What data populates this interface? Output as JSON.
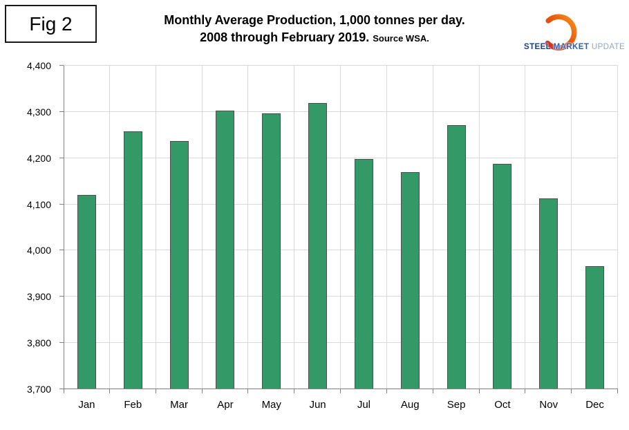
{
  "figure_label": "Fig 2",
  "title": {
    "line1": "Monthly Average Production, 1,000 tonnes per day.",
    "line2": "2008 through February 2019.",
    "source": "Source WSA."
  },
  "logo": {
    "part1": "STEEL",
    "part2": "MARKET",
    "part3": "UPDATE",
    "ring_color_start": "#d23a2b",
    "ring_color_end": "#f7941d"
  },
  "chart_data": {
    "type": "bar",
    "title": "Monthly Average Production, 1,000 tonnes per day. 2008 through February 2019. Source WSA.",
    "categories": [
      "Jan",
      "Feb",
      "Mar",
      "Apr",
      "May",
      "Jun",
      "Jul",
      "Aug",
      "Sep",
      "Oct",
      "Nov",
      "Dec"
    ],
    "values": [
      4120,
      4258,
      4237,
      4303,
      4297,
      4320,
      4198,
      4169,
      4272,
      4188,
      4113,
      3966
    ],
    "xlabel": "",
    "ylabel": "",
    "ylim": [
      3700,
      4400
    ],
    "ytick_step": 100,
    "yticks": [
      {
        "value": 3700,
        "label": "3,700"
      },
      {
        "value": 3800,
        "label": "3,800"
      },
      {
        "value": 3900,
        "label": "3,900"
      },
      {
        "value": 4000,
        "label": "4,000"
      },
      {
        "value": 4100,
        "label": "4,100"
      },
      {
        "value": 4200,
        "label": "4,200"
      },
      {
        "value": 4300,
        "label": "4,300"
      },
      {
        "value": 4400,
        "label": "4,400"
      }
    ],
    "grid": true,
    "legend": "none",
    "bar_color": "#339966",
    "bar_border_color": "#4d4d4d",
    "gridline_color": "#d9d9d9",
    "axis_color": "#808080"
  }
}
